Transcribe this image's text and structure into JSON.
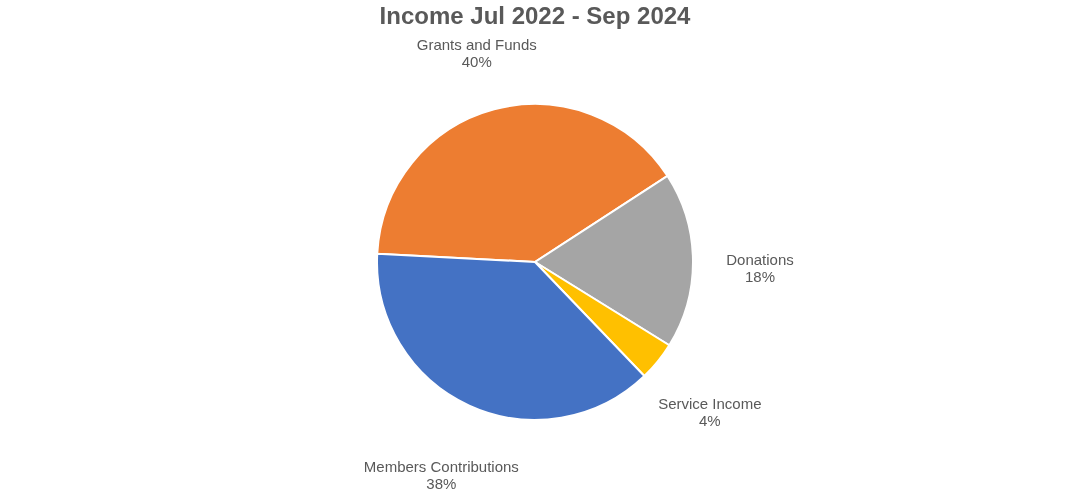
{
  "chart_data": {
    "type": "pie",
    "title": "Income Jul 2022 - Sep 2024",
    "categories": [
      "Grants and Funds",
      "Donations",
      "Service Income",
      "Members Contributions"
    ],
    "values": [
      40,
      18,
      4,
      38
    ],
    "colors": [
      "#ed7d31",
      "#a5a5a5",
      "#ffc000",
      "#4472c4"
    ],
    "value_labels": [
      "40%",
      "18%",
      "4%",
      "38%"
    ]
  }
}
